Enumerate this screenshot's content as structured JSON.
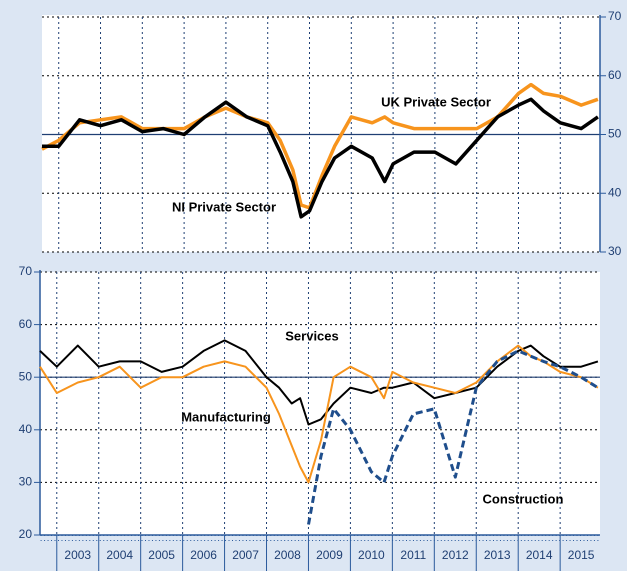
{
  "chart_data": [
    {
      "type": "line",
      "axis_side": "right",
      "x": [
        2002.6,
        2003.0,
        2003.5,
        2004.0,
        2004.5,
        2005.0,
        2005.5,
        2006.0,
        2006.5,
        2007.0,
        2007.5,
        2008.0,
        2008.3,
        2008.6,
        2008.8,
        2009.0,
        2009.3,
        2009.6,
        2010.0,
        2010.5,
        2010.8,
        2011.0,
        2011.5,
        2012.0,
        2012.5,
        2013.0,
        2013.5,
        2014.0,
        2014.3,
        2014.6,
        2015.0,
        2015.5,
        2015.9
      ],
      "xlim": [
        2002.6,
        2015.95
      ],
      "years": [
        2003,
        2004,
        2005,
        2006,
        2007,
        2008,
        2009,
        2010,
        2011,
        2012,
        2013,
        2014,
        2015
      ],
      "ylim": [
        30,
        70
      ],
      "yticks": [
        30,
        40,
        50,
        60,
        70
      ],
      "reference_line": 50,
      "series": [
        {
          "name": "UK Private Sector",
          "color": "#f7941d",
          "dash": false,
          "values": [
            47.5,
            49,
            52,
            52.5,
            53,
            51,
            51,
            51,
            53,
            54.5,
            53,
            52,
            49,
            44,
            38,
            37.5,
            43,
            48,
            53,
            52,
            53,
            52,
            51,
            51,
            51,
            51,
            53,
            57,
            58.5,
            57,
            56.5,
            55,
            56
          ]
        },
        {
          "name": "NI Private Sector",
          "color": "#000000",
          "dash": false,
          "values": [
            48,
            48,
            52.5,
            51.5,
            52.5,
            50.5,
            51,
            50,
            53,
            55.5,
            53,
            51.5,
            47,
            42,
            36,
            37,
            42,
            46,
            48,
            46,
            42,
            45,
            47,
            47,
            45,
            49,
            53,
            55,
            56,
            54,
            52,
            51,
            53
          ]
        }
      ]
    },
    {
      "type": "line",
      "axis_side": "left",
      "x": [
        2002.6,
        2003.0,
        2003.5,
        2004.0,
        2004.5,
        2005.0,
        2005.5,
        2006.0,
        2006.5,
        2007.0,
        2007.5,
        2008.0,
        2008.3,
        2008.6,
        2008.8,
        2009.0,
        2009.3,
        2009.6,
        2010.0,
        2010.5,
        2010.8,
        2011.0,
        2011.5,
        2012.0,
        2012.5,
        2013.0,
        2013.5,
        2014.0,
        2014.3,
        2014.6,
        2015.0,
        2015.5,
        2015.9
      ],
      "xlim": [
        2002.6,
        2015.95
      ],
      "years": [
        2003,
        2004,
        2005,
        2006,
        2007,
        2008,
        2009,
        2010,
        2011,
        2012,
        2013,
        2014,
        2015
      ],
      "ylim": [
        20,
        70
      ],
      "yticks": [
        20,
        30,
        40,
        50,
        60,
        70
      ],
      "reference_line": 50,
      "series": [
        {
          "name": "Services",
          "color": "#000000",
          "dash": false,
          "values": [
            55,
            52,
            56,
            52,
            53,
            53,
            51,
            52,
            55,
            57,
            55,
            50,
            48,
            45,
            46,
            41,
            42,
            45,
            48,
            47,
            48,
            48,
            49,
            46,
            47,
            48,
            52,
            55,
            56,
            54,
            52,
            52,
            53
          ]
        },
        {
          "name": "Manufacturing",
          "color": "#f7941d",
          "dash": false,
          "values": [
            52,
            47,
            49,
            50,
            52,
            48,
            50,
            50,
            52,
            53,
            52,
            48,
            43,
            37,
            33,
            30,
            38,
            50,
            52,
            50,
            46,
            51,
            49,
            48,
            47,
            49,
            53,
            56,
            54,
            53,
            51,
            50,
            48
          ]
        },
        {
          "name": "Construction",
          "color": "#1f4e8c",
          "dash": true,
          "values": [
            null,
            null,
            null,
            null,
            null,
            null,
            null,
            null,
            null,
            null,
            null,
            null,
            null,
            null,
            null,
            22,
            35,
            44,
            40,
            32,
            30,
            35,
            43,
            44,
            31,
            48,
            53,
            55,
            54,
            53,
            52,
            50,
            48
          ]
        }
      ]
    }
  ]
}
